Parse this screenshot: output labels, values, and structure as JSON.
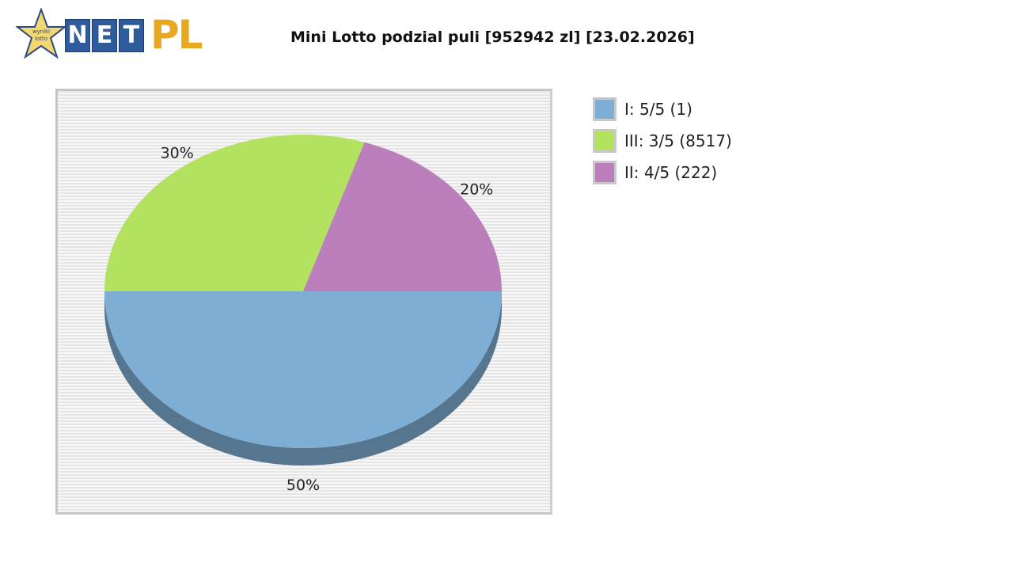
{
  "header": {
    "title": "Mini Lotto podzial puli [952942 zl] [23.02.2026]",
    "logo_text": "NETPL",
    "logo_star_text": "wyniki lotto"
  },
  "chart_data": {
    "type": "pie",
    "title": "Mini Lotto podzial puli [952942 zl] [23.02.2026]",
    "style": "3d",
    "legend": "right",
    "slices": [
      {
        "name": "I: 5/5 (1)",
        "value": 50,
        "label": "50%",
        "color": "#7eaed4"
      },
      {
        "name": "III: 3/5 (8517)",
        "value": 30,
        "label": "30%",
        "color": "#b3e261"
      },
      {
        "name": "II: 4/5 (222)",
        "value": 20,
        "label": "20%",
        "color": "#bb7fbc"
      }
    ]
  }
}
